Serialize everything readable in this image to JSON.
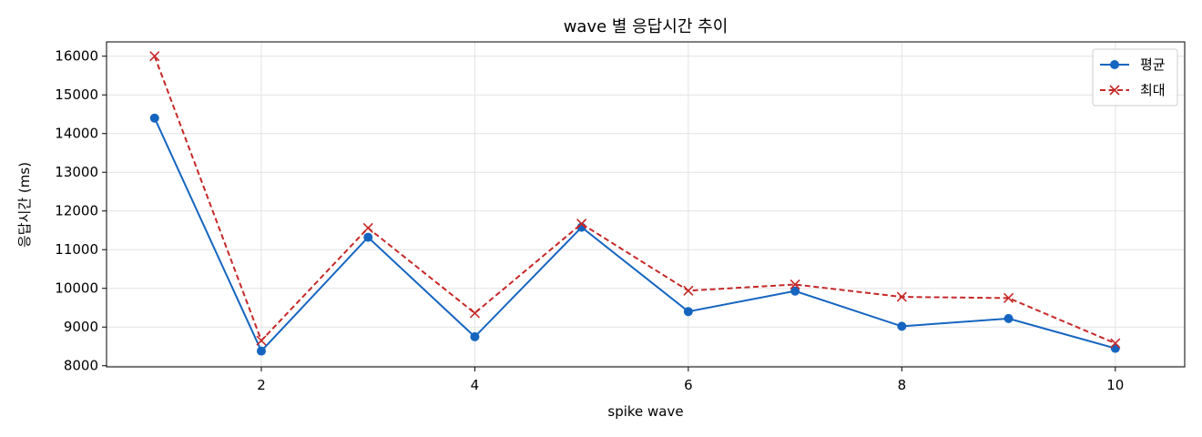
{
  "chart_data": {
    "type": "line",
    "title": "wave 별 응답시간 추이",
    "xlabel": "spike wave",
    "ylabel": "응답시간 (ms)",
    "x": [
      1,
      2,
      3,
      4,
      5,
      6,
      7,
      8,
      9,
      10
    ],
    "xlim": [
      0.55,
      10.65
    ],
    "ylim": [
      7970,
      16370
    ],
    "xticks": [
      2,
      4,
      6,
      8,
      10
    ],
    "yticks": [
      8000,
      9000,
      10000,
      11000,
      12000,
      13000,
      14000,
      15000,
      16000
    ],
    "grid": true,
    "legend_position": "top-right",
    "series": [
      {
        "name": "평균",
        "color": "#1565c0",
        "line_style": "solid",
        "marker": "circle",
        "values": [
          14400,
          8380,
          11320,
          8750,
          11580,
          9400,
          9930,
          9020,
          9220,
          8450
        ]
      },
      {
        "name": "최대",
        "color": "#c62828",
        "line_style": "dashed",
        "marker": "x",
        "values": [
          16000,
          8650,
          11560,
          9360,
          11670,
          9940,
          10100,
          9780,
          9750,
          8580
        ]
      }
    ]
  }
}
